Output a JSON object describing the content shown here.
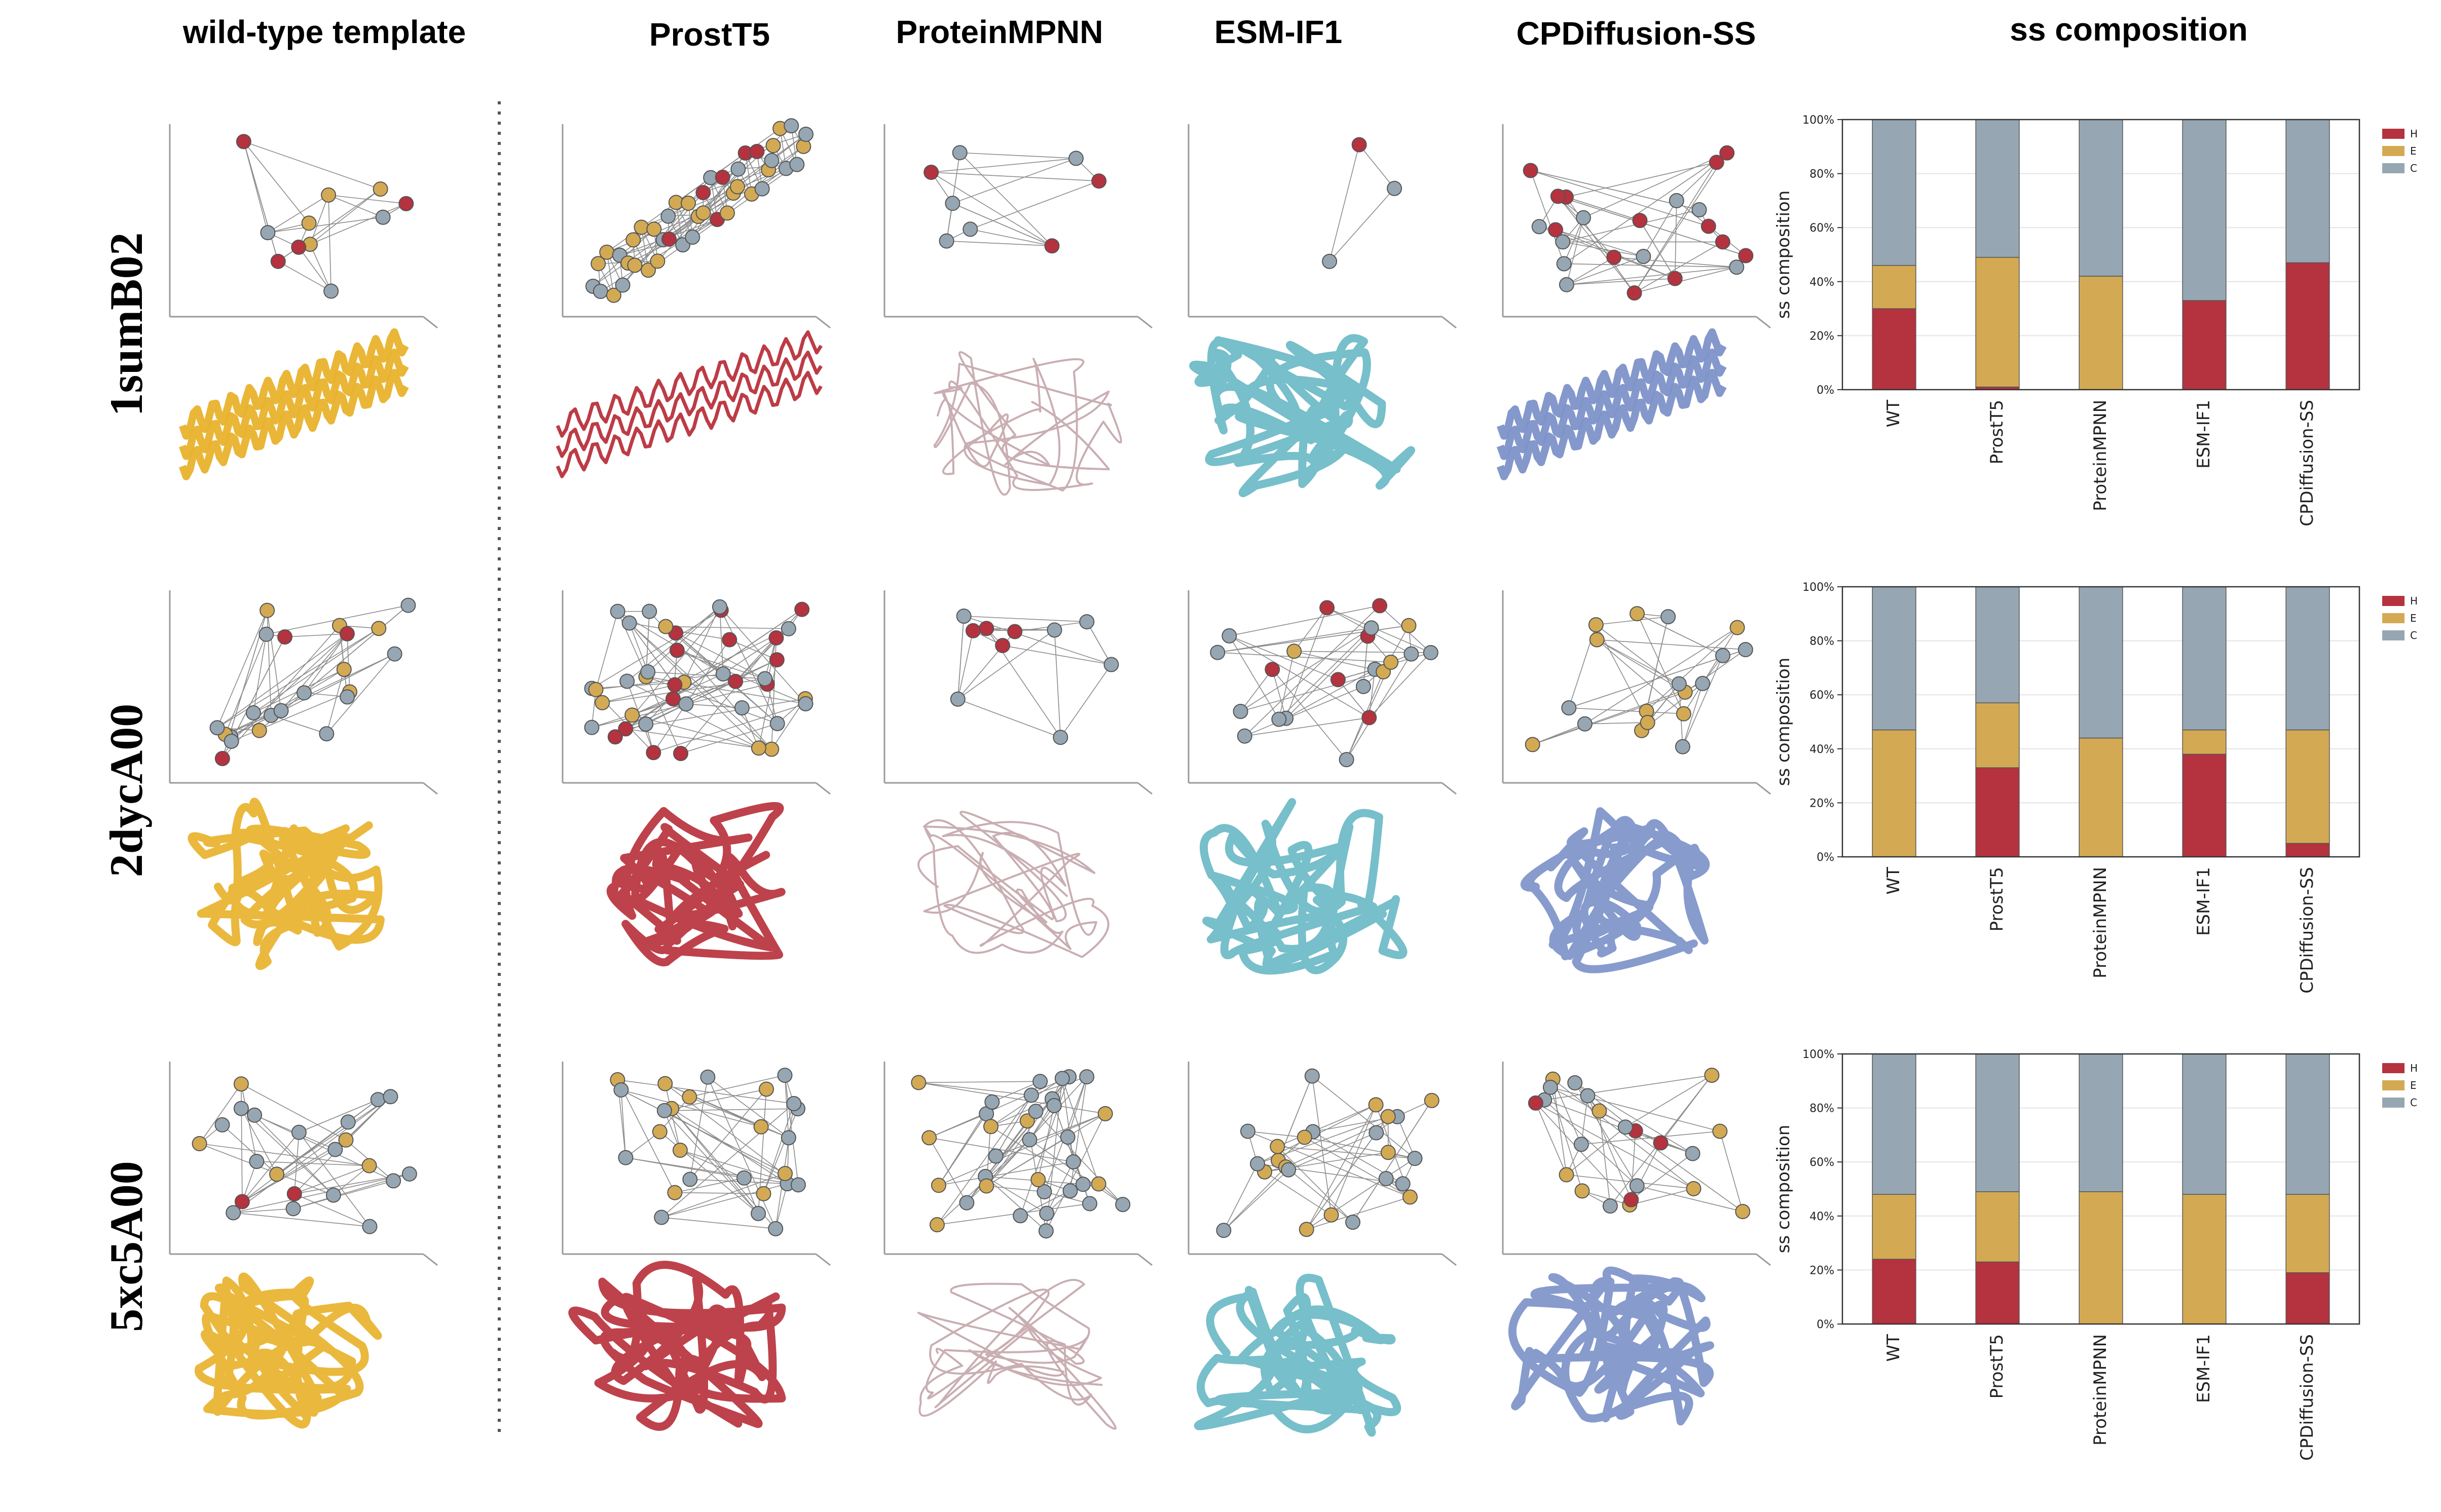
{
  "column_titles": [
    "wild-type template",
    "ProstT5",
    "ProteinMPNN",
    "ESM-IF1",
    "CPDiffusion-SS",
    "ss composition"
  ],
  "row_titles": [
    "1sumB02",
    "2dycA00",
    "5xc5A00"
  ],
  "colors": {
    "H": "#b5323f",
    "E": "#d3aa53",
    "C": "#96a7b3",
    "wild_type_cartoon": "#e8b22c",
    "ProstT5_cartoon": "#b8323c",
    "ProteinMPNN_cartoon": "#c4a7ab",
    "ESM-IF1_cartoon": "#6bbac6",
    "CPDiffusion-SS_cartoon": "#7d92c9"
  },
  "chart_data": [
    {
      "type": "bar",
      "stacked": true,
      "row": "1sumB02",
      "categories": [
        "WT",
        "ProstT5",
        "ProteinMPNN",
        "ESM-IF1",
        "CPDiffusion-SS"
      ],
      "series": [
        {
          "name": "H",
          "values": [
            30,
            1,
            0,
            33,
            47
          ]
        },
        {
          "name": "E",
          "values": [
            16,
            48,
            42,
            0,
            0
          ]
        },
        {
          "name": "C",
          "values": [
            54,
            51,
            58,
            67,
            53
          ]
        }
      ],
      "ylabel": "ss composition",
      "yticks": [
        "0%",
        "20%",
        "40%",
        "60%",
        "80%",
        "100%"
      ],
      "ylim": [
        0,
        100
      ],
      "grid": true,
      "legend": "top-right"
    },
    {
      "type": "bar",
      "stacked": true,
      "row": "2dycA00",
      "categories": [
        "WT",
        "ProstT5",
        "ProteinMPNN",
        "ESM-IF1",
        "CPDiffusion-SS"
      ],
      "series": [
        {
          "name": "H",
          "values": [
            0,
            33,
            0,
            38,
            5
          ]
        },
        {
          "name": "E",
          "values": [
            47,
            24,
            44,
            9,
            42
          ]
        },
        {
          "name": "C",
          "values": [
            53,
            43,
            56,
            53,
            53
          ]
        }
      ],
      "ylabel": "ss composition",
      "yticks": [
        "0%",
        "20%",
        "40%",
        "60%",
        "80%",
        "100%"
      ],
      "ylim": [
        0,
        100
      ],
      "grid": true,
      "legend": "top-right"
    },
    {
      "type": "bar",
      "stacked": true,
      "row": "5xc5A00",
      "categories": [
        "WT",
        "ProstT5",
        "ProteinMPNN",
        "ESM-IF1",
        "CPDiffusion-SS"
      ],
      "series": [
        {
          "name": "H",
          "values": [
            24,
            23,
            0,
            0,
            19
          ]
        },
        {
          "name": "E",
          "values": [
            24,
            26,
            49,
            48,
            29
          ]
        },
        {
          "name": "C",
          "values": [
            52,
            51,
            51,
            52,
            52
          ]
        }
      ],
      "ylabel": "ss composition",
      "yticks": [
        "0%",
        "20%",
        "40%",
        "60%",
        "80%",
        "100%"
      ],
      "ylim": [
        0,
        100
      ],
      "grid": true,
      "legend": "top-right"
    }
  ]
}
